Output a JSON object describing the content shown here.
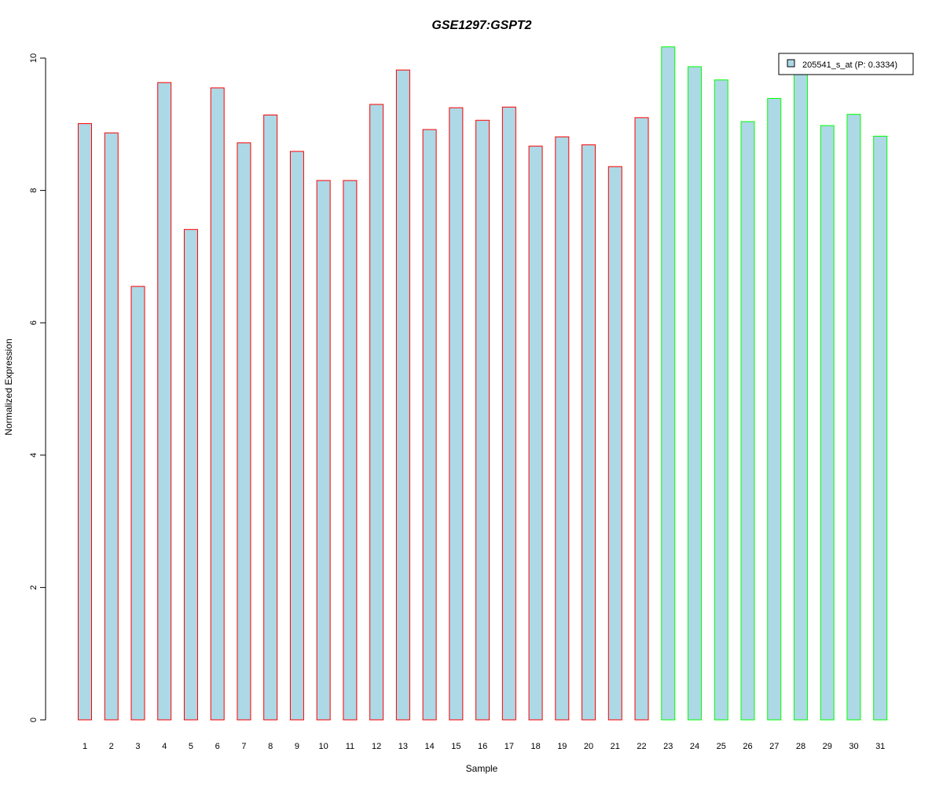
{
  "chart_data": {
    "type": "bar",
    "title": "GSE1297:GSPT2",
    "title_color": "#0000ff",
    "xlabel": "Sample",
    "ylabel": "Normalized Expression",
    "ylim": [
      0,
      10
    ],
    "yticks": [
      "0",
      "2",
      "4",
      "6",
      "8",
      "10"
    ],
    "grid": false,
    "legend_position": "top-right",
    "categories": [
      "1",
      "2",
      "3",
      "4",
      "5",
      "6",
      "7",
      "8",
      "9",
      "10",
      "11",
      "12",
      "13",
      "14",
      "15",
      "16",
      "17",
      "18",
      "19",
      "20",
      "21",
      "22",
      "23",
      "24",
      "25",
      "26",
      "27",
      "28",
      "29",
      "30",
      "31"
    ],
    "series": [
      {
        "name": "205541_s_at (P: 0.3334)",
        "fill": "#add8e6",
        "values": [
          9.01,
          8.87,
          6.55,
          9.63,
          7.41,
          9.55,
          8.72,
          9.14,
          8.59,
          8.15,
          8.15,
          9.3,
          9.82,
          8.92,
          9.25,
          9.06,
          9.26,
          8.67,
          8.81,
          8.69,
          8.36,
          9.1,
          10.17,
          9.87,
          9.67,
          9.04,
          9.39,
          9.78,
          8.98,
          9.15,
          8.82
        ]
      }
    ],
    "bar_edge_colors": [
      "#ff0000",
      "#ff0000",
      "#ff0000",
      "#ff0000",
      "#ff0000",
      "#ff0000",
      "#ff0000",
      "#ff0000",
      "#ff0000",
      "#ff0000",
      "#ff0000",
      "#ff0000",
      "#ff0000",
      "#ff0000",
      "#ff0000",
      "#ff0000",
      "#ff0000",
      "#ff0000",
      "#ff0000",
      "#ff0000",
      "#ff0000",
      "#ff0000",
      "#00ff00",
      "#00ff00",
      "#00ff00",
      "#00ff00",
      "#00ff00",
      "#00ff00",
      "#00ff00",
      "#00ff00",
      "#00ff00"
    ],
    "legend_label": "205541_s_at (P: 0.3334)"
  }
}
